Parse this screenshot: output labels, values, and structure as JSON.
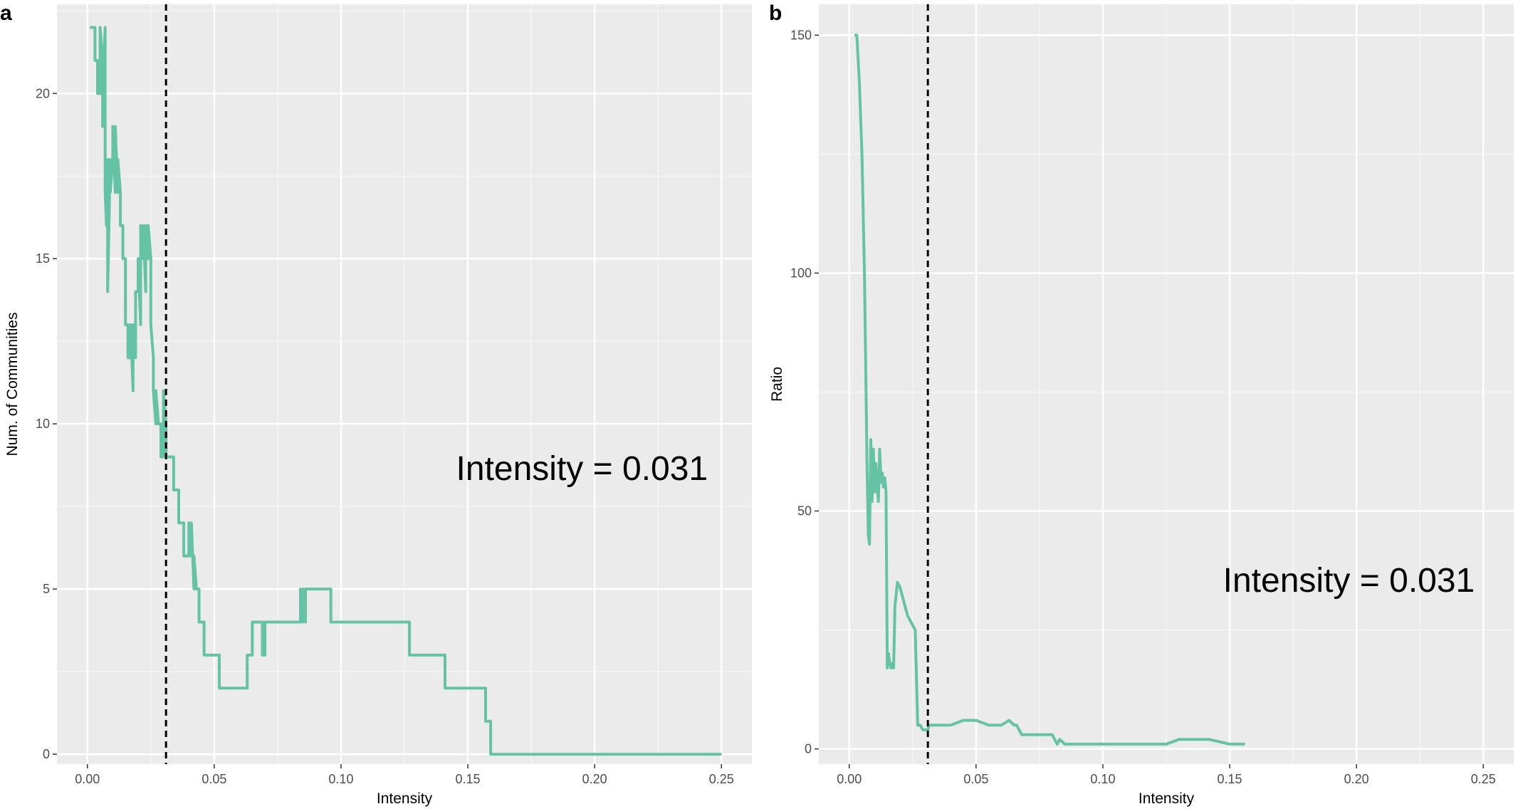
{
  "chart_data": [
    {
      "panel": "a",
      "type": "line",
      "xlabel": "Intensity",
      "ylabel": "Num. of Communities",
      "xlim": [
        -0.012,
        0.262
      ],
      "ylim": [
        -0.3,
        22.7
      ],
      "xticks": [
        0.0,
        0.05,
        0.1,
        0.15,
        0.2,
        0.25
      ],
      "xtick_labels": [
        "0.00",
        "0.05",
        "0.10",
        "0.15",
        "0.20",
        "0.25"
      ],
      "yticks": [
        0,
        5,
        10,
        15,
        20
      ],
      "ytick_labels": [
        "0",
        "5",
        "10",
        "15",
        "20"
      ],
      "grid": true,
      "line_color": "#66c2a5",
      "vline": {
        "x": 0.031,
        "style": "dashed",
        "color": "#000000"
      },
      "annotation": {
        "text": "Intensity = 0.031",
        "x": 0.195,
        "y": 8.3
      },
      "x": [
        0.001,
        0.003,
        0.003,
        0.004,
        0.004,
        0.005,
        0.005,
        0.006,
        0.006,
        0.0065,
        0.007,
        0.007,
        0.0075,
        0.008,
        0.008,
        0.009,
        0.009,
        0.01,
        0.01,
        0.011,
        0.011,
        0.012,
        0.012,
        0.013,
        0.013,
        0.014,
        0.014,
        0.015,
        0.015,
        0.016,
        0.016,
        0.017,
        0.017,
        0.018,
        0.018,
        0.019,
        0.019,
        0.02,
        0.02,
        0.021,
        0.021,
        0.022,
        0.022,
        0.023,
        0.023,
        0.024,
        0.024,
        0.025,
        0.025,
        0.026,
        0.026,
        0.027,
        0.027,
        0.028,
        0.028,
        0.029,
        0.029,
        0.03,
        0.03,
        0.031,
        0.031,
        0.032,
        0.032,
        0.033,
        0.033,
        0.034,
        0.034,
        0.036,
        0.036,
        0.038,
        0.038,
        0.04,
        0.04,
        0.041,
        0.041,
        0.042,
        0.042,
        0.043,
        0.043,
        0.044,
        0.044,
        0.046,
        0.046,
        0.052,
        0.052,
        0.063,
        0.063,
        0.065,
        0.065,
        0.069,
        0.069,
        0.07,
        0.07,
        0.071,
        0.071,
        0.084,
        0.084,
        0.085,
        0.085,
        0.086,
        0.086,
        0.096,
        0.096,
        0.127,
        0.127,
        0.141,
        0.141,
        0.157,
        0.157,
        0.159,
        0.159,
        0.25
      ],
      "y": [
        22,
        22,
        21,
        21,
        20,
        20,
        22,
        21,
        19,
        21,
        22,
        17,
        16,
        18,
        14,
        18,
        17,
        18,
        19,
        17,
        19,
        17,
        18,
        17,
        16,
        16,
        15,
        15,
        13,
        13,
        12,
        12,
        13,
        11,
        13,
        12,
        14,
        14,
        15,
        13,
        16,
        15,
        16,
        14,
        16,
        15,
        16,
        15,
        13,
        12,
        11,
        10,
        11,
        10,
        10,
        10,
        9,
        9,
        11,
        10,
        9,
        9,
        9,
        9,
        9,
        9,
        8,
        8,
        7,
        7,
        6,
        6,
        7,
        6,
        7,
        5,
        6,
        5,
        5,
        5,
        4,
        4,
        3,
        3,
        2,
        2,
        3,
        3,
        4,
        4,
        3,
        3,
        4,
        4,
        4,
        4,
        5,
        4,
        5,
        4,
        5,
        5,
        4,
        4,
        3,
        3,
        2,
        2,
        1,
        1,
        0,
        0
      ]
    },
    {
      "panel": "b",
      "type": "line",
      "xlabel": "Intensity",
      "ylabel": "Ratio",
      "xlim": [
        -0.012,
        0.262
      ],
      "ylim": [
        -3.2,
        156.5
      ],
      "xticks": [
        0.0,
        0.05,
        0.1,
        0.15,
        0.2,
        0.25
      ],
      "xtick_labels": [
        "0.00",
        "0.05",
        "0.10",
        "0.15",
        "0.20",
        "0.25"
      ],
      "yticks": [
        0,
        50,
        100,
        150
      ],
      "ytick_labels": [
        "0",
        "50",
        "100",
        "150"
      ],
      "grid": true,
      "line_color": "#66c2a5",
      "vline": {
        "x": 0.031,
        "style": "dashed",
        "color": "#000000"
      },
      "annotation": {
        "text": "Intensity = 0.031",
        "x": 0.197,
        "y": 33
      },
      "x": [
        0.002,
        0.003,
        0.004,
        0.005,
        0.006,
        0.007,
        0.0075,
        0.008,
        0.0085,
        0.009,
        0.0095,
        0.01,
        0.0105,
        0.011,
        0.0115,
        0.012,
        0.0125,
        0.013,
        0.0135,
        0.014,
        0.0145,
        0.015,
        0.0155,
        0.016,
        0.0165,
        0.017,
        0.0175,
        0.018,
        0.019,
        0.02,
        0.021,
        0.022,
        0.023,
        0.024,
        0.025,
        0.026,
        0.027,
        0.028,
        0.029,
        0.03,
        0.031,
        0.0315,
        0.032,
        0.035,
        0.04,
        0.045,
        0.05,
        0.055,
        0.06,
        0.063,
        0.065,
        0.066,
        0.068,
        0.07,
        0.08,
        0.082,
        0.083,
        0.085,
        0.09,
        0.1,
        0.11,
        0.12,
        0.125,
        0.13,
        0.14,
        0.142,
        0.15,
        0.156
      ],
      "y": [
        150,
        150,
        140,
        125,
        100,
        60,
        45,
        43,
        65,
        52,
        63,
        54,
        60,
        55,
        52,
        63,
        56,
        58,
        55,
        57,
        54,
        17,
        20,
        18,
        17,
        18,
        17,
        30,
        35,
        34,
        32,
        30,
        28,
        27,
        26,
        25,
        5,
        5,
        4,
        4,
        4,
        5,
        5,
        5,
        5,
        6,
        6,
        5,
        5,
        6,
        5,
        5,
        3,
        3,
        3,
        1,
        2,
        1,
        1,
        1,
        1,
        1,
        1,
        2,
        2,
        2,
        1,
        1
      ]
    }
  ]
}
